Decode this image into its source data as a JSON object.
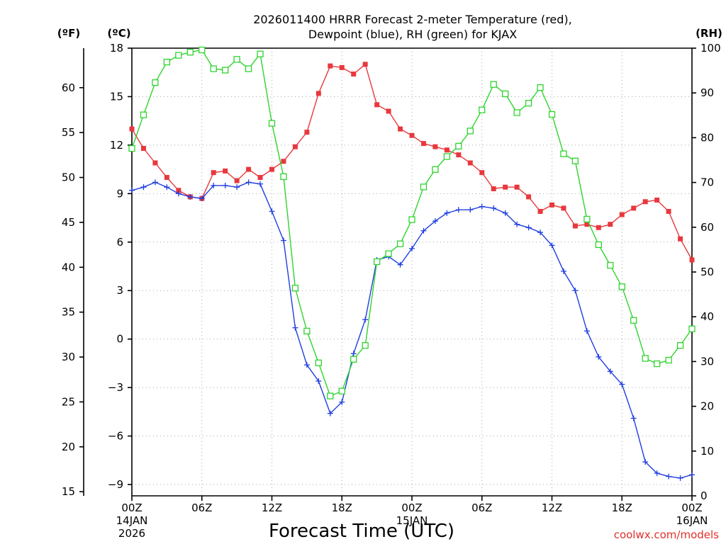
{
  "chart_data": {
    "type": "line",
    "title_line1": "2026011400 HRRR Forecast 2-meter Temperature (red),",
    "title_line2": "Dewpoint (blue), RH (green) for KJAX",
    "xlabel": "Forecast Time (UTC)",
    "credit": "coolwx.com/models",
    "unit_f": "(ºF)",
    "unit_c": "(ºC)",
    "unit_rh": "(RH)",
    "grid": true,
    "x_unit": "forecast hour from 2026-01-14 00Z",
    "xlim": [
      0,
      48
    ],
    "x_ticks": [
      {
        "h": 0,
        "label": "00Z",
        "sub1": "14JAN",
        "sub2": "2026"
      },
      {
        "h": 6,
        "label": "06Z",
        "sub1": "",
        "sub2": ""
      },
      {
        "h": 12,
        "label": "12Z",
        "sub1": "",
        "sub2": ""
      },
      {
        "h": 18,
        "label": "18Z",
        "sub1": "",
        "sub2": ""
      },
      {
        "h": 24,
        "label": "00Z",
        "sub1": "15JAN",
        "sub2": ""
      },
      {
        "h": 30,
        "label": "06Z",
        "sub1": "",
        "sub2": ""
      },
      {
        "h": 36,
        "label": "12Z",
        "sub1": "",
        "sub2": ""
      },
      {
        "h": 42,
        "label": "18Z",
        "sub1": "",
        "sub2": ""
      },
      {
        "h": 48,
        "label": "00Z",
        "sub1": "16JAN",
        "sub2": ""
      }
    ],
    "celsius_axis": {
      "ylim": [
        -9.7,
        18
      ],
      "ticks": [
        "18",
        "15",
        "12",
        "9",
        "6",
        "3",
        "0",
        "−3",
        "−6",
        "−9"
      ],
      "tick_values": [
        18,
        15,
        12,
        9,
        6,
        3,
        0,
        -3,
        -6,
        -9
      ]
    },
    "fahrenheit_axis": {
      "ticks": [
        "60",
        "55",
        "50",
        "45",
        "40",
        "35",
        "30",
        "25",
        "20",
        "15"
      ],
      "tick_values": [
        60,
        55,
        50,
        45,
        40,
        35,
        30,
        25,
        20,
        15
      ]
    },
    "rh_axis": {
      "ylim": [
        0,
        100
      ],
      "ticks": [
        "100",
        "90",
        "80",
        "70",
        "60",
        "50",
        "40",
        "30",
        "20",
        "10",
        "0"
      ],
      "tick_values": [
        100,
        90,
        80,
        70,
        60,
        50,
        40,
        30,
        20,
        10,
        0
      ]
    },
    "series": [
      {
        "name": "Temperature",
        "color": "#e8383d",
        "marker": "filled-square",
        "axis": "celsius",
        "values": [
          13.0,
          11.8,
          10.9,
          10.0,
          9.2,
          8.8,
          8.7,
          10.3,
          10.4,
          9.8,
          10.5,
          10.0,
          10.5,
          11.0,
          11.9,
          12.8,
          15.2,
          16.9,
          16.8,
          16.4,
          17.0,
          14.5,
          14.1,
          13.0,
          12.6,
          12.1,
          11.9,
          11.7,
          11.4,
          10.9,
          10.3,
          9.3,
          9.4,
          9.4,
          8.8,
          7.9,
          8.3,
          8.1,
          7.0,
          7.1,
          6.9,
          7.1,
          7.7,
          8.1,
          8.5,
          8.6,
          7.9,
          6.2,
          4.9
        ]
      },
      {
        "name": "Dewpoint",
        "color": "#1f3ee0",
        "marker": "plus",
        "axis": "celsius",
        "values": [
          9.2,
          9.4,
          9.7,
          9.4,
          9.0,
          8.8,
          8.7,
          9.5,
          9.5,
          9.4,
          9.7,
          9.6,
          7.9,
          6.1,
          0.7,
          -1.6,
          -2.6,
          -4.6,
          -3.9,
          -0.9,
          1.2,
          4.9,
          5.1,
          4.6,
          5.6,
          6.7,
          7.3,
          7.8,
          8.0,
          8.0,
          8.2,
          8.1,
          7.8,
          7.1,
          6.9,
          6.6,
          5.8,
          4.2,
          3.0,
          0.5,
          -1.1,
          -2.0,
          -2.8,
          -4.9,
          -7.6,
          -8.3,
          -8.5,
          -8.6,
          -8.4
        ]
      },
      {
        "name": "RH",
        "color": "#2fd42f",
        "marker": "open-square",
        "axis": "rh",
        "values": [
          77.6,
          85.1,
          92.3,
          96.9,
          98.4,
          99.1,
          99.6,
          95.4,
          95.1,
          97.5,
          95.4,
          98.7,
          83.2,
          71.3,
          46.4,
          36.8,
          29.7,
          22.3,
          23.4,
          30.5,
          33.6,
          52.3,
          54.1,
          56.3,
          61.7,
          69.0,
          72.9,
          75.8,
          78.1,
          81.5,
          86.2,
          91.9,
          89.8,
          85.6,
          87.7,
          91.2,
          85.2,
          76.4,
          74.8,
          61.8,
          56.1,
          51.5,
          46.7,
          39.2,
          30.7,
          29.5,
          30.3,
          33.6,
          37.3
        ]
      }
    ]
  }
}
